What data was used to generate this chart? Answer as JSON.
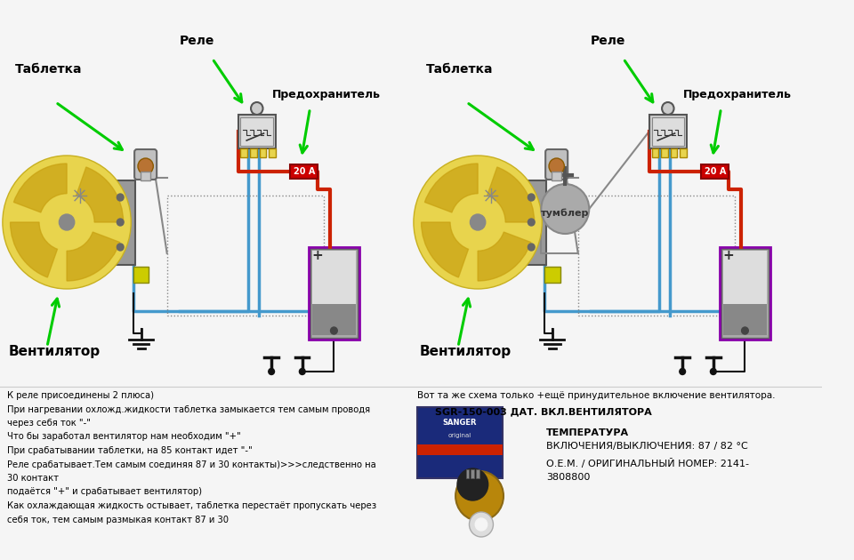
{
  "bg_color": "#f5f5f5",
  "left_labels": {
    "tabletka": "Таблетка",
    "rele": "Реле",
    "predohranitel": "Предохранитель",
    "ventilator": "Вентилятор"
  },
  "right_labels": {
    "tabletka": "Таблетка",
    "rele": "Реле",
    "predohranitel": "Предохранитель",
    "ventilator": "Вентилятор",
    "tumbler": "тумблер"
  },
  "fuse_label": "20 А",
  "bottom_left": [
    "К реле присоединены 2 плюса)",
    "При нагревании охложд.жидкости таблетка замыкается тем самым проводя",
    "через себя ток \"-\"",
    "Что бы заработал вентилятор нам необходим \"+\"",
    "При срабатывании таблетки, на 85 контакт идет \"-\"",
    "Реле срабатывает.Тем самым соединяя 87 и 30 контакты)>>>следственно на",
    "30 контакт",
    "подаётся \"+\" и срабатывает вентилятор)",
    "Как охлаждающая жидкость остывает, таблетка перестаёт пропускать через",
    "себя ток, тем самым размыкая контакт 87 и 30"
  ],
  "bottom_right_line1": "Вот та же схема только +ещё принудительное включение вентилятора.",
  "bottom_right_line2": "SGR-150-003 ДАТ. ВКЛ.ВЕНТИЛЯТОРА",
  "bottom_right_line3": "ТЕМПЕРАТУРА",
  "bottom_right_line4": "ВКЛЮЧЕНИЯ/ВЫКЛЮЧЕНИЯ: 87 / 82 °C",
  "bottom_right_line5": "О.Е.М. / ОРИГИНАЛЬНЫЙ НОМЕР: 2141-",
  "bottom_right_line6": "3808800"
}
